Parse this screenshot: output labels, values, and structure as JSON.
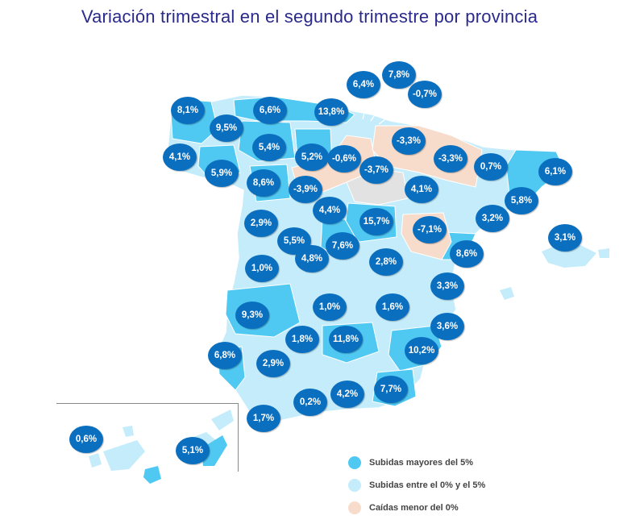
{
  "title": "Variación trimestral en el segundo trimestre por provincia",
  "legend": [
    {
      "label": "Subidas mayores del 5%",
      "color": "#4fc8f2"
    },
    {
      "label": "Subidas entre el 0% y el 5%",
      "color": "#c4ecfb"
    },
    {
      "label": "Caídas menor del 0%",
      "color": "#f8dccb"
    }
  ],
  "colors": {
    "bubble": "#0b6fc0",
    "title": "#2a2a8c",
    "high": "#4fc8f2",
    "mid": "#c4ecfb",
    "neg": "#f8dccb",
    "no_data": "#e2e2e2"
  },
  "provinces": [
    {
      "id": "a-coruna",
      "value": "8,1%"
    },
    {
      "id": "asturias",
      "value": "6,6%"
    },
    {
      "id": "cantabria",
      "value": "13,8%"
    },
    {
      "id": "bizkaia",
      "value": "6,4%"
    },
    {
      "id": "gipuzkoa",
      "value": "7,8%"
    },
    {
      "id": "navarra-north",
      "value": "-0,7%"
    },
    {
      "id": "lugo",
      "value": "9,5%"
    },
    {
      "id": "leon",
      "value": "5,4%"
    },
    {
      "id": "burgos",
      "value": "5,2%"
    },
    {
      "id": "la-rioja",
      "value": "-0,6%"
    },
    {
      "id": "alava",
      "value": "-3,3%"
    },
    {
      "id": "huesca",
      "value": "-3,3%"
    },
    {
      "id": "girona",
      "value": "0,7%"
    },
    {
      "id": "pontevedra",
      "value": "4,1%"
    },
    {
      "id": "ourense",
      "value": "5,9%"
    },
    {
      "id": "valladolid",
      "value": "8,6%"
    },
    {
      "id": "segovia",
      "value": "-3,9%"
    },
    {
      "id": "soria",
      "value": "-3,7%"
    },
    {
      "id": "lleida",
      "value": "4,1%"
    },
    {
      "id": "barcelona-north",
      "value": "6,1%"
    },
    {
      "id": "barcelona",
      "value": "5,8%"
    },
    {
      "id": "tarragona",
      "value": "3,2%"
    },
    {
      "id": "illes-balears",
      "value": "3,1%"
    },
    {
      "id": "salamanca",
      "value": "2,9%"
    },
    {
      "id": "avila",
      "value": "4,4%"
    },
    {
      "id": "guadalajara",
      "value": "15,7%"
    },
    {
      "id": "teruel",
      "value": "-7,1%"
    },
    {
      "id": "caceres-north",
      "value": "5,5%"
    },
    {
      "id": "madrid",
      "value": "7,6%"
    },
    {
      "id": "toledo",
      "value": "4,8%"
    },
    {
      "id": "castellon",
      "value": "8,6%"
    },
    {
      "id": "caceres",
      "value": "1,0%"
    },
    {
      "id": "cuenca",
      "value": "2,8%"
    },
    {
      "id": "valencia",
      "value": "3,3%"
    },
    {
      "id": "badajoz",
      "value": "9,3%"
    },
    {
      "id": "ciudad-real",
      "value": "1,0%"
    },
    {
      "id": "albacete",
      "value": "1,6%"
    },
    {
      "id": "alicante",
      "value": "3,6%"
    },
    {
      "id": "cordoba",
      "value": "1,8%"
    },
    {
      "id": "jaen",
      "value": "11,8%"
    },
    {
      "id": "murcia",
      "value": "10,2%"
    },
    {
      "id": "huelva",
      "value": "6,8%"
    },
    {
      "id": "sevilla",
      "value": "2,9%"
    },
    {
      "id": "granada",
      "value": "4,2%"
    },
    {
      "id": "almeria",
      "value": "7,7%"
    },
    {
      "id": "malaga",
      "value": "0,2%"
    },
    {
      "id": "cadiz",
      "value": "1,7%"
    },
    {
      "id": "santa-cruz-de-tenerife",
      "value": "0,6%"
    },
    {
      "id": "las-palmas",
      "value": "5,1%"
    }
  ]
}
